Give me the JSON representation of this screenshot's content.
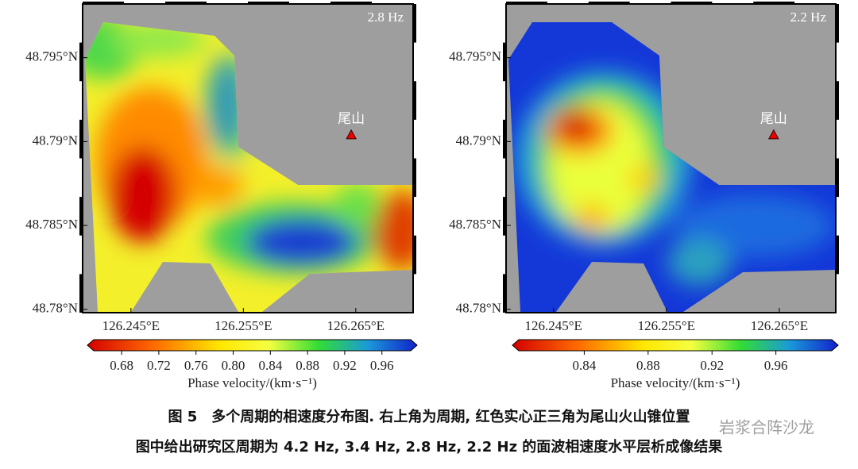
{
  "panels": [
    {
      "period": "2.8 Hz",
      "xlim": [
        126.2407,
        126.2701
      ],
      "ylim": [
        48.7798,
        48.7982
      ],
      "xticks": [
        {
          "value": 126.245,
          "label": "126.245°E"
        },
        {
          "value": 126.255,
          "label": "126.255°E"
        },
        {
          "value": 126.265,
          "label": "126.265°E"
        }
      ],
      "yticks": [
        {
          "value": 48.795,
          "label": "48.795°N"
        },
        {
          "value": 48.79,
          "label": "48.79°N"
        },
        {
          "value": 48.785,
          "label": "48.785°N"
        },
        {
          "value": 48.78,
          "label": "48.78°N"
        }
      ],
      "volcano": {
        "label": "尾山",
        "x": 126.2646,
        "y": 48.7904
      },
      "colorbar": {
        "lim": [
          0.65,
          0.991
        ],
        "title": "Phase velocity/(km·s⁻¹)",
        "ticks": [
          0.68,
          0.72,
          0.76,
          {
            "value": 0.8,
            "label": "0.80"
          },
          0.84,
          0.88,
          0.92,
          0.96
        ]
      }
    },
    {
      "period": "2.2 Hz",
      "xlim": [
        126.2408,
        126.27
      ],
      "ylim": [
        48.7798,
        48.7982
      ],
      "xticks": [
        {
          "value": 126.245,
          "label": "126.245°E"
        },
        {
          "value": 126.255,
          "label": "126.255°E"
        },
        {
          "value": 126.265,
          "label": "126.265°E"
        }
      ],
      "yticks": [
        {
          "value": 48.795,
          "label": "48.795°N"
        },
        {
          "value": 48.79,
          "label": "48.79°N"
        },
        {
          "value": 48.785,
          "label": "48.785°N"
        },
        {
          "value": 48.78,
          "label": "48.78°N"
        }
      ],
      "volcano": {
        "label": "尾山",
        "x": 126.2645,
        "y": 48.7904
      },
      "colorbar": {
        "lim": [
          0.799,
          0.995
        ],
        "title": "Phase velocity/(km·s⁻¹)",
        "ticks": [
          0.84,
          0.88,
          0.92,
          0.96
        ]
      }
    }
  ],
  "caption": {
    "line1": "图 5　多个周期的相速度分布图. 右上角为周期, 红色实心正三角为尾山火山锥位置",
    "line2": "图中给出研究区周期为 4.2 Hz, 3.4 Hz, 2.8 Hz, 2.2 Hz 的面波相速度水平层析成像结果"
  },
  "watermark": "岩浆合阵沙龙"
}
